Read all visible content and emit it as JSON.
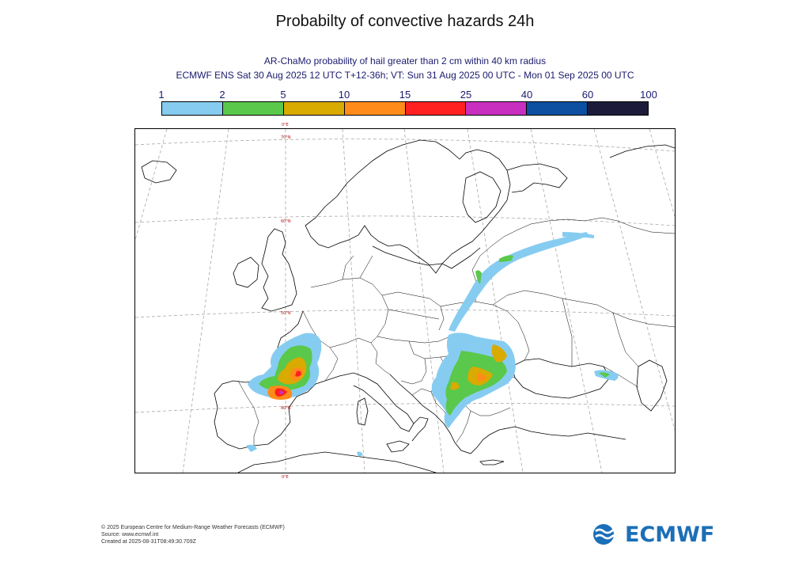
{
  "page": {
    "title": "Probabilty of convective hazards 24h",
    "subtitle_line1": "AR-ChaMo probability of hail greater than 2 cm within 40 km radius",
    "subtitle_line2": "ECMWF ENS Sat 30 Aug 2025 12 UTC T+12-36h; VT: Sun 31 Aug 2025 00 UTC - Mon 01 Sep 2025 00 UTC"
  },
  "legend": {
    "labels": [
      "1",
      "2",
      "5",
      "10",
      "15",
      "25",
      "40",
      "60",
      "100"
    ],
    "colors": [
      "#86ccf0",
      "#5ac84a",
      "#d9aa00",
      "#ff8c1a",
      "#ff2020",
      "#c82fbf",
      "#0d4fa0",
      "#1c1c3a"
    ]
  },
  "map": {
    "lat_labels": [
      "70°N",
      "60°N",
      "50°N",
      "40°N"
    ],
    "lon_labels": [
      "0°E",
      "0°E"
    ],
    "colors": {
      "coast": "#000000",
      "grid": "#a8a8a8"
    }
  },
  "footer": {
    "line1": "© 2025 European Centre for Medium-Range Weather Forecasts (ECMWF)",
    "line2": "Source: www.ecmwf.int",
    "line3": "Created at 2025-08-31T08:49:30.709Z"
  },
  "logo": {
    "text": "ECMWF",
    "icon": "ecmwf-logo-icon",
    "color": "#1b6fb8"
  }
}
